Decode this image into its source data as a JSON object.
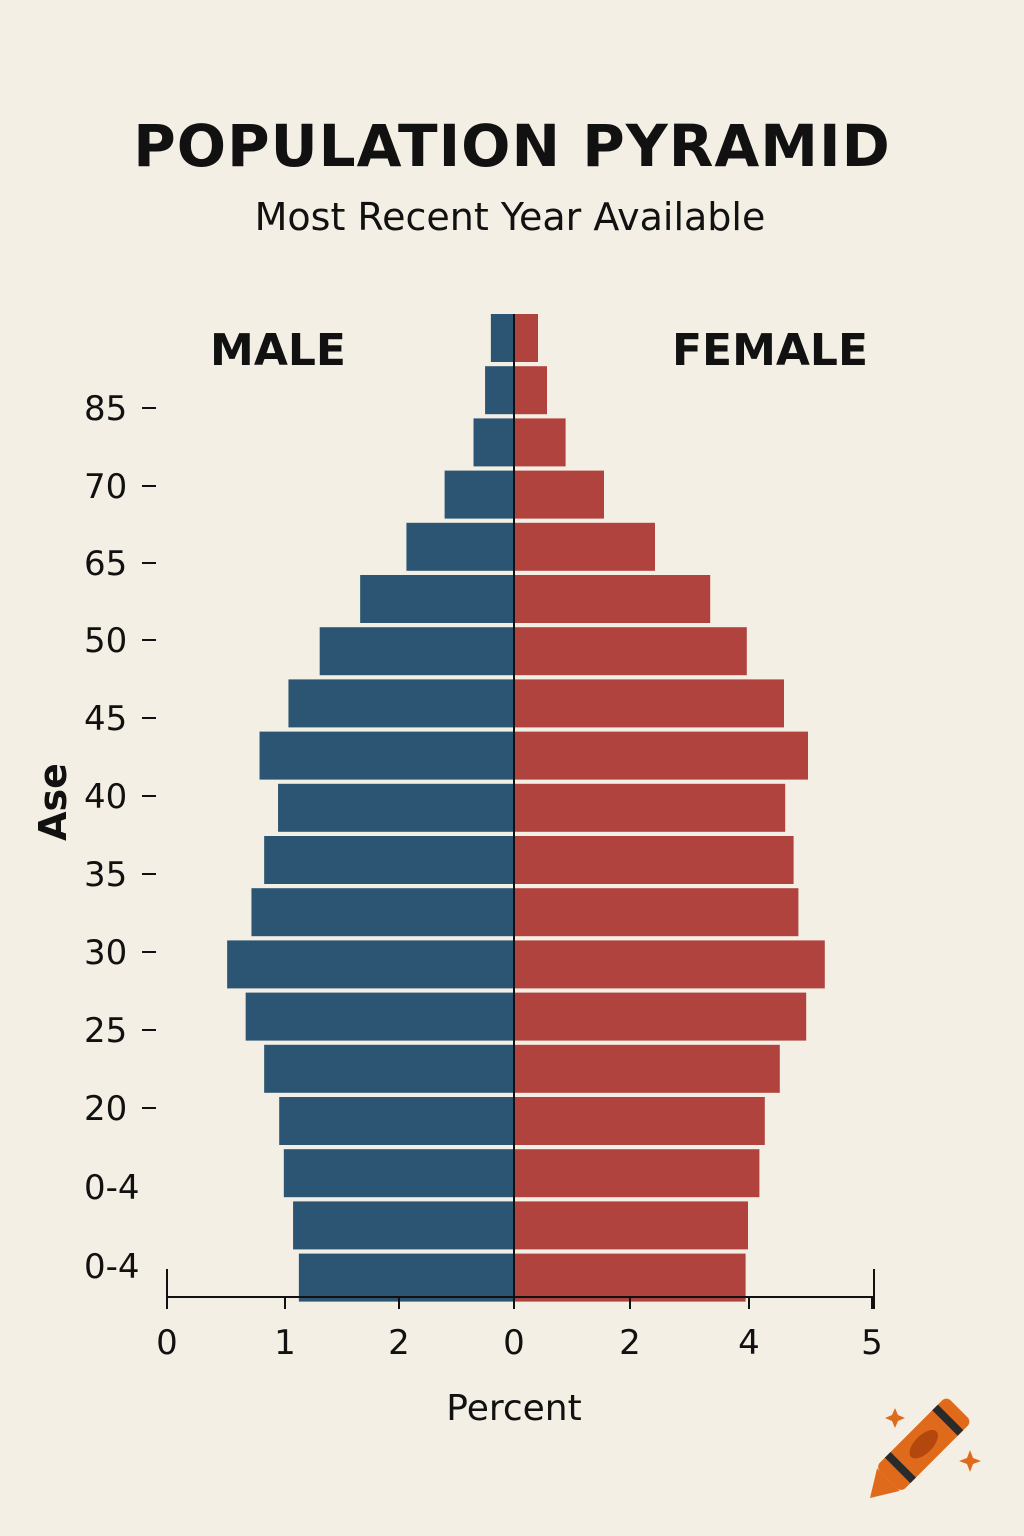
{
  "chart_data": {
    "type": "bar",
    "title": "POPULATION PYRAMID",
    "subtitle": "Most Recent Year Available",
    "ylabel": "Ase",
    "xlabel": "Percent",
    "side_labels": {
      "left": "MALE",
      "right": "FEMALE"
    },
    "age_tick_labels": [
      "85",
      "70",
      "65",
      "50",
      "45",
      "40",
      "35",
      "30",
      "25",
      "20",
      "0-4",
      "0-4"
    ],
    "x_tick_labels": {
      "male": [
        "0",
        "1",
        "2",
        "0"
      ],
      "female": [
        "2",
        "4",
        "5"
      ]
    },
    "xlim_male": [
      0,
      3
    ],
    "xlim_female": [
      0,
      6
    ],
    "series": [
      {
        "name": "MALE",
        "values": [
          0.2,
          0.25,
          0.35,
          0.6,
          0.93,
          1.33,
          1.68,
          1.95,
          2.2,
          2.04,
          2.16,
          2.27,
          2.48,
          2.32,
          2.16,
          2.03,
          1.99,
          1.91,
          1.86
        ]
      },
      {
        "name": "FEMALE",
        "values": [
          0.4,
          0.55,
          0.86,
          1.5,
          2.35,
          3.27,
          3.88,
          4.5,
          4.9,
          4.52,
          4.66,
          4.74,
          5.18,
          4.87,
          4.43,
          4.18,
          4.09,
          3.9,
          3.86
        ]
      }
    ],
    "colors": {
      "male": "#2c5573",
      "female": "#b0433d"
    }
  }
}
